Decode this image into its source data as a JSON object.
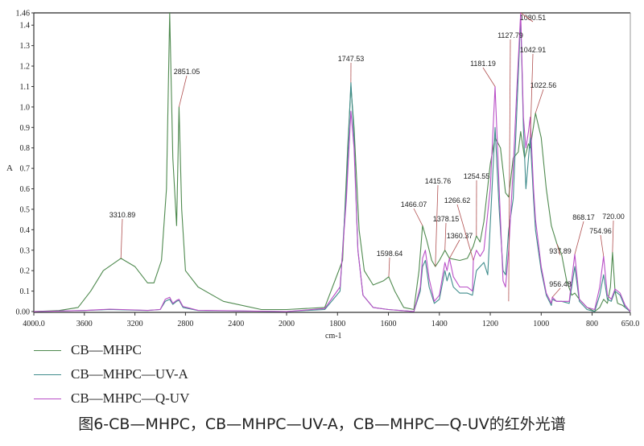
{
  "chart_data": {
    "type": "line",
    "title": "图6-CB—MHPC，CB—MHPC—UV-A，CB—MHPC—Q-UV的红外光谱",
    "xlabel": "cm-1",
    "ylabel": "A",
    "xlim": [
      4000,
      650
    ],
    "ylim": [
      0,
      1.46
    ],
    "x_axis_reversed": true,
    "x_axis_scale_break": "scale expands 2x below 2000 cm-1",
    "x_ticks": [
      "4000.0",
      "3600",
      "3200",
      "2800",
      "2400",
      "2000",
      "1800",
      "1600",
      "1400",
      "1200",
      "1000",
      "800",
      "650.0"
    ],
    "y_ticks": [
      "1.46",
      "1.4",
      "1.3",
      "1.2",
      "1.1",
      "1.0",
      "0.9",
      "0.8",
      "0.7",
      "0.6",
      "0.5",
      "0.4",
      "0.3",
      "0.2",
      "0.1",
      "0.00"
    ],
    "grid": false,
    "legend_position": "bottom-left",
    "series": [
      {
        "name": "CB—MHPC",
        "color": "#4f8a4f",
        "points": [
          [
            4000,
            0.0
          ],
          [
            3800,
            0.005
          ],
          [
            3650,
            0.02
          ],
          [
            3550,
            0.1
          ],
          [
            3450,
            0.2
          ],
          [
            3310.89,
            0.26
          ],
          [
            3200,
            0.22
          ],
          [
            3100,
            0.14
          ],
          [
            3050,
            0.14
          ],
          [
            2990,
            0.25
          ],
          [
            2950,
            0.6
          ],
          [
            2925,
            1.46
          ],
          [
            2900,
            0.75
          ],
          [
            2870,
            0.42
          ],
          [
            2851.05,
            1.0
          ],
          [
            2830,
            0.5
          ],
          [
            2800,
            0.2
          ],
          [
            2700,
            0.12
          ],
          [
            2500,
            0.05
          ],
          [
            2200,
            0.01
          ],
          [
            2000,
            0.01
          ],
          [
            1850,
            0.02
          ],
          [
            1780,
            0.25
          ],
          [
            1760,
            0.8
          ],
          [
            1747.53,
            1.1
          ],
          [
            1735,
            0.9
          ],
          [
            1715,
            0.4
          ],
          [
            1695,
            0.2
          ],
          [
            1660,
            0.13
          ],
          [
            1620,
            0.15
          ],
          [
            1598.64,
            0.17
          ],
          [
            1575,
            0.1
          ],
          [
            1540,
            0.02
          ],
          [
            1500,
            0.01
          ],
          [
            1480,
            0.2
          ],
          [
            1466.07,
            0.42
          ],
          [
            1450,
            0.35
          ],
          [
            1430,
            0.25
          ],
          [
            1415.76,
            0.22
          ],
          [
            1400,
            0.25
          ],
          [
            1378.15,
            0.3
          ],
          [
            1360.37,
            0.26
          ],
          [
            1320,
            0.25
          ],
          [
            1290,
            0.26
          ],
          [
            1266.62,
            0.32
          ],
          [
            1254.55,
            0.37
          ],
          [
            1240,
            0.34
          ],
          [
            1225,
            0.44
          ],
          [
            1200,
            0.72
          ],
          [
            1181.19,
            0.85
          ],
          [
            1160,
            0.8
          ],
          [
            1140,
            0.58
          ],
          [
            1127.79,
            0.56
          ],
          [
            1110,
            0.75
          ],
          [
            1090,
            0.78
          ],
          [
            1080.51,
            0.88
          ],
          [
            1065,
            0.75
          ],
          [
            1050,
            0.82
          ],
          [
            1042.91,
            0.8
          ],
          [
            1022.56,
            0.97
          ],
          [
            1000,
            0.85
          ],
          [
            980,
            0.6
          ],
          [
            960,
            0.42
          ],
          [
            937.89,
            0.33
          ],
          [
            920,
            0.28
          ],
          [
            900,
            0.15
          ],
          [
            880,
            0.08
          ],
          [
            868.17,
            0.09
          ],
          [
            850,
            0.06
          ],
          [
            820,
            0.02
          ],
          [
            790,
            0.0
          ],
          [
            770,
            0.02
          ],
          [
            754.96,
            0.06
          ],
          [
            740,
            0.04
          ],
          [
            728,
            0.12
          ],
          [
            720.0,
            0.29
          ],
          [
            710,
            0.1
          ],
          [
            700,
            0.04
          ],
          [
            680,
            0.03
          ],
          [
            650,
            0.0
          ]
        ]
      },
      {
        "name": "CB—MHPC—UV-A",
        "color": "#3f8c8c",
        "points": [
          [
            4000,
            0.0
          ],
          [
            3600,
            0.005
          ],
          [
            3400,
            0.01
          ],
          [
            3100,
            0.005
          ],
          [
            3000,
            0.01
          ],
          [
            2960,
            0.05
          ],
          [
            2925,
            0.06
          ],
          [
            2900,
            0.035
          ],
          [
            2870,
            0.05
          ],
          [
            2851.05,
            0.055
          ],
          [
            2820,
            0.02
          ],
          [
            2700,
            0.005
          ],
          [
            2000,
            0.0
          ],
          [
            1850,
            0.01
          ],
          [
            1790,
            0.1
          ],
          [
            1765,
            0.6
          ],
          [
            1747.53,
            1.12
          ],
          [
            1735,
            0.85
          ],
          [
            1720,
            0.3
          ],
          [
            1700,
            0.08
          ],
          [
            1660,
            0.02
          ],
          [
            1600,
            0.01
          ],
          [
            1500,
            0.0
          ],
          [
            1475,
            0.1
          ],
          [
            1466.07,
            0.22
          ],
          [
            1455,
            0.25
          ],
          [
            1440,
            0.12
          ],
          [
            1420,
            0.04
          ],
          [
            1400,
            0.06
          ],
          [
            1378.15,
            0.2
          ],
          [
            1370,
            0.15
          ],
          [
            1360.37,
            0.19
          ],
          [
            1345,
            0.12
          ],
          [
            1320,
            0.09
          ],
          [
            1290,
            0.09
          ],
          [
            1270,
            0.08
          ],
          [
            1254.55,
            0.2
          ],
          [
            1240,
            0.22
          ],
          [
            1225,
            0.24
          ],
          [
            1210,
            0.18
          ],
          [
            1195,
            0.55
          ],
          [
            1181.19,
            0.9
          ],
          [
            1165,
            0.5
          ],
          [
            1150,
            0.2
          ],
          [
            1140,
            0.18
          ],
          [
            1127.79,
            0.4
          ],
          [
            1110,
            0.55
          ],
          [
            1095,
            1.0
          ],
          [
            1080.51,
            1.44
          ],
          [
            1070,
            0.9
          ],
          [
            1060,
            0.6
          ],
          [
            1050,
            0.75
          ],
          [
            1042.91,
            0.85
          ],
          [
            1030,
            0.55
          ],
          [
            1022.56,
            0.4
          ],
          [
            1000,
            0.2
          ],
          [
            980,
            0.08
          ],
          [
            960,
            0.03
          ],
          [
            956.48,
            0.06
          ],
          [
            940,
            0.05
          ],
          [
            920,
            0.05
          ],
          [
            890,
            0.04
          ],
          [
            868.17,
            0.22
          ],
          [
            850,
            0.05
          ],
          [
            820,
            0.01
          ],
          [
            790,
            0.0
          ],
          [
            770,
            0.08
          ],
          [
            754.96,
            0.18
          ],
          [
            740,
            0.06
          ],
          [
            725,
            0.05
          ],
          [
            710,
            0.1
          ],
          [
            690,
            0.08
          ],
          [
            670,
            0.02
          ],
          [
            650,
            0.0
          ]
        ]
      },
      {
        "name": "CB—MHPC—Q-UV",
        "color": "#b94fc7",
        "points": [
          [
            4000,
            0.0
          ],
          [
            3600,
            0.005
          ],
          [
            3400,
            0.012
          ],
          [
            3100,
            0.006
          ],
          [
            3000,
            0.01
          ],
          [
            2960,
            0.06
          ],
          [
            2925,
            0.07
          ],
          [
            2900,
            0.04
          ],
          [
            2870,
            0.055
          ],
          [
            2851.05,
            0.06
          ],
          [
            2820,
            0.025
          ],
          [
            2700,
            0.006
          ],
          [
            2000,
            0.0
          ],
          [
            1850,
            0.015
          ],
          [
            1790,
            0.12
          ],
          [
            1765,
            0.55
          ],
          [
            1747.53,
            0.98
          ],
          [
            1735,
            0.8
          ],
          [
            1720,
            0.3
          ],
          [
            1700,
            0.08
          ],
          [
            1660,
            0.02
          ],
          [
            1600,
            0.01
          ],
          [
            1500,
            0.0
          ],
          [
            1475,
            0.12
          ],
          [
            1466.07,
            0.26
          ],
          [
            1455,
            0.3
          ],
          [
            1440,
            0.16
          ],
          [
            1420,
            0.05
          ],
          [
            1400,
            0.08
          ],
          [
            1378.15,
            0.24
          ],
          [
            1370,
            0.2
          ],
          [
            1360.37,
            0.26
          ],
          [
            1345,
            0.17
          ],
          [
            1320,
            0.12
          ],
          [
            1290,
            0.12
          ],
          [
            1270,
            0.1
          ],
          [
            1266.62,
            0.25
          ],
          [
            1254.55,
            0.3
          ],
          [
            1240,
            0.27
          ],
          [
            1225,
            0.3
          ],
          [
            1200,
            0.6
          ],
          [
            1181.19,
            1.1
          ],
          [
            1165,
            0.6
          ],
          [
            1150,
            0.15
          ],
          [
            1140,
            0.12
          ],
          [
            1127.79,
            0.3
          ],
          [
            1110,
            0.7
          ],
          [
            1095,
            1.1
          ],
          [
            1080.51,
            1.46
          ],
          [
            1070,
            0.95
          ],
          [
            1060,
            0.8
          ],
          [
            1050,
            0.88
          ],
          [
            1042.91,
            0.95
          ],
          [
            1030,
            0.6
          ],
          [
            1022.56,
            0.45
          ],
          [
            1000,
            0.22
          ],
          [
            980,
            0.09
          ],
          [
            960,
            0.04
          ],
          [
            956.48,
            0.07
          ],
          [
            940,
            0.05
          ],
          [
            920,
            0.05
          ],
          [
            890,
            0.05
          ],
          [
            868.17,
            0.28
          ],
          [
            850,
            0.06
          ],
          [
            820,
            0.02
          ],
          [
            790,
            0.01
          ],
          [
            770,
            0.12
          ],
          [
            754.96,
            0.27
          ],
          [
            740,
            0.08
          ],
          [
            725,
            0.06
          ],
          [
            710,
            0.11
          ],
          [
            690,
            0.09
          ],
          [
            670,
            0.03
          ],
          [
            650,
            0.0
          ]
        ]
      }
    ],
    "annotations": [
      {
        "label": "3310.89",
        "x": 3310.89,
        "y": 0.26
      },
      {
        "label": "2851.05",
        "x": 2851.05,
        "y": 1.0
      },
      {
        "label": "1747.53",
        "x": 1747.53,
        "y": 1.12
      },
      {
        "label": "1598.64",
        "x": 1598.64,
        "y": 0.17
      },
      {
        "label": "1466.07",
        "x": 1466.07,
        "y": 0.42
      },
      {
        "label": "1415.76",
        "x": 1415.76,
        "y": 0.22
      },
      {
        "label": "1378.15",
        "x": 1378.15,
        "y": 0.3
      },
      {
        "label": "1360.37",
        "x": 1360.37,
        "y": 0.26
      },
      {
        "label": "1266.62",
        "x": 1266.62,
        "y": 0.25
      },
      {
        "label": "1254.55",
        "x": 1254.55,
        "y": 0.37
      },
      {
        "label": "1181.19",
        "x": 1181.19,
        "y": 1.1
      },
      {
        "label": "1127.79",
        "x": 1127.79,
        "y": 0.05
      },
      {
        "label": "1080.51",
        "x": 1080.51,
        "y": 1.46
      },
      {
        "label": "1042.91",
        "x": 1042.91,
        "y": 0.85
      },
      {
        "label": "1022.56",
        "x": 1022.56,
        "y": 0.97
      },
      {
        "label": "956.48",
        "x": 956.48,
        "y": 0.07
      },
      {
        "label": "937.89",
        "x": 937.89,
        "y": 0.33
      },
      {
        "label": "868.17",
        "x": 868.17,
        "y": 0.28
      },
      {
        "label": "754.96",
        "x": 754.96,
        "y": 0.27
      },
      {
        "label": "720.00",
        "x": 720.0,
        "y": 0.29
      }
    ]
  },
  "legend": {
    "items": [
      {
        "label": "CB—MHPC",
        "color": "#4f8a4f"
      },
      {
        "label": "CB—MHPC—UV-A",
        "color": "#3f8c8c"
      },
      {
        "label": "CB—MHPC—Q-UV",
        "color": "#b94fc7"
      }
    ]
  },
  "caption": "图6-CB—MHPC，CB—MHPC—UV-A，CB—MHPC—Q-UV的红外光谱",
  "axis": {
    "y_label": "A",
    "x_label": "cm-1"
  }
}
